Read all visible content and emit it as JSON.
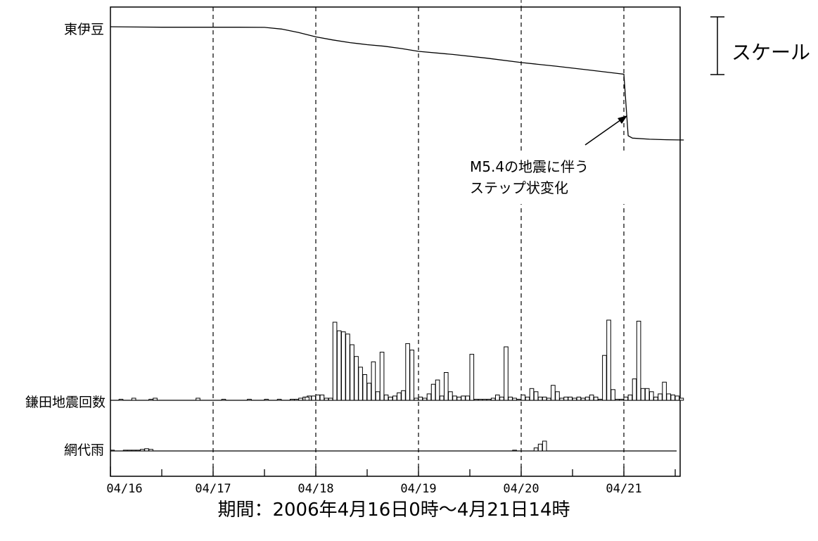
{
  "chart_data": {
    "type": "line",
    "x_start": "2006-04-16 00:00",
    "x_end": "2006-04-21 14:00",
    "x_tick_labels": [
      "04/16",
      "04/17",
      "04/18",
      "04/19",
      "04/20",
      "04/21"
    ],
    "dashed_day_lines": [
      "04/17",
      "04/18",
      "04/19",
      "04/20",
      "04/21"
    ],
    "period_label": "期間：2006年4月16日0時～4月21日14時",
    "panels": [
      {
        "name": "東伊豆",
        "type": "line",
        "points": [
          [
            0,
            10.0
          ],
          [
            6,
            9.98
          ],
          [
            12,
            9.97
          ],
          [
            18,
            9.97
          ],
          [
            24,
            9.97
          ],
          [
            30,
            9.97
          ],
          [
            36,
            9.96
          ],
          [
            40,
            9.85
          ],
          [
            44,
            9.63
          ],
          [
            48,
            9.35
          ],
          [
            52,
            9.15
          ],
          [
            56,
            8.98
          ],
          [
            60,
            8.85
          ],
          [
            64,
            8.75
          ],
          [
            68,
            8.6
          ],
          [
            72,
            8.42
          ],
          [
            80,
            8.22
          ],
          [
            88,
            7.98
          ],
          [
            96,
            7.7
          ],
          [
            104,
            7.47
          ],
          [
            112,
            7.22
          ],
          [
            118,
            7.02
          ],
          [
            120,
            6.95
          ],
          [
            121,
            3.0
          ],
          [
            122,
            2.85
          ],
          [
            126,
            2.78
          ],
          [
            130,
            2.75
          ],
          [
            134,
            2.73
          ]
        ],
        "scale_label": "スケール"
      },
      {
        "name": "鎌田地震回数",
        "type": "bar",
        "hourly_bar_width_hours": 1,
        "bars": [
          [
            2,
            1
          ],
          [
            5,
            2
          ],
          [
            9,
            1
          ],
          [
            10,
            2
          ],
          [
            20,
            2
          ],
          [
            26,
            1
          ],
          [
            32,
            1
          ],
          [
            36,
            1
          ],
          [
            39,
            1
          ],
          [
            42,
            1
          ],
          [
            46,
            4
          ],
          [
            47,
            4
          ],
          [
            48,
            5
          ],
          [
            49,
            5
          ],
          [
            45,
            3
          ],
          [
            50,
            2
          ],
          [
            51,
            2
          ],
          [
            44,
            2
          ],
          [
            43,
            1
          ],
          [
            45.5,
            3
          ],
          [
            52,
            73
          ],
          [
            53,
            65
          ],
          [
            54,
            64
          ],
          [
            55,
            62
          ],
          [
            56,
            52
          ],
          [
            57,
            41
          ],
          [
            58,
            31
          ],
          [
            59,
            24
          ],
          [
            60,
            16
          ],
          [
            61,
            36
          ],
          [
            62,
            8
          ],
          [
            63,
            45
          ],
          [
            64,
            5
          ],
          [
            65,
            3
          ],
          [
            66,
            4
          ],
          [
            67,
            7
          ],
          [
            68,
            9
          ],
          [
            69,
            53
          ],
          [
            70,
            47
          ],
          [
            71,
            2
          ],
          [
            72,
            3
          ],
          [
            73,
            2
          ],
          [
            74,
            6
          ],
          [
            75,
            15
          ],
          [
            76,
            19
          ],
          [
            77,
            4
          ],
          [
            78,
            26
          ],
          [
            79,
            8
          ],
          [
            80,
            4
          ],
          [
            81,
            3
          ],
          [
            82,
            4
          ],
          [
            83,
            4
          ],
          [
            84,
            43
          ],
          [
            85,
            1
          ],
          [
            86,
            1
          ],
          [
            87,
            1
          ],
          [
            88,
            1
          ],
          [
            89,
            2
          ],
          [
            90,
            5
          ],
          [
            91,
            3
          ],
          [
            92,
            50
          ],
          [
            93,
            3
          ],
          [
            94,
            2
          ],
          [
            95,
            1
          ],
          [
            96,
            5
          ],
          [
            97,
            3
          ],
          [
            98,
            11
          ],
          [
            99,
            8
          ],
          [
            100,
            3
          ],
          [
            101,
            3
          ],
          [
            102,
            2
          ],
          [
            103,
            14
          ],
          [
            104,
            8
          ],
          [
            105,
            2
          ],
          [
            106,
            3
          ],
          [
            107,
            3
          ],
          [
            108,
            2
          ],
          [
            109,
            3
          ],
          [
            110,
            2
          ],
          [
            111,
            3
          ],
          [
            112,
            5
          ],
          [
            113,
            3
          ],
          [
            114,
            1
          ],
          [
            115,
            42
          ],
          [
            116,
            75
          ],
          [
            117,
            10
          ],
          [
            118,
            1
          ],
          [
            119,
            1
          ],
          [
            120,
            3
          ],
          [
            121,
            5
          ],
          [
            122,
            20
          ],
          [
            123,
            74
          ],
          [
            124,
            11
          ],
          [
            125,
            11
          ],
          [
            126,
            8
          ],
          [
            127,
            3
          ],
          [
            128,
            6
          ],
          [
            129,
            17
          ],
          [
            130,
            6
          ],
          [
            131,
            5
          ],
          [
            132,
            4
          ],
          [
            133,
            2
          ]
        ]
      },
      {
        "name": "網代雨",
        "type": "bar",
        "hourly_bar_width_hours": 1,
        "bars": [
          [
            0,
            1
          ],
          [
            3,
            1
          ],
          [
            4,
            1
          ],
          [
            5,
            1
          ],
          [
            6,
            1
          ],
          [
            7,
            2
          ],
          [
            8,
            3
          ],
          [
            9,
            2
          ],
          [
            94,
            1
          ],
          [
            99,
            4
          ],
          [
            100,
            9
          ],
          [
            101,
            13
          ]
        ]
      }
    ],
    "annotation": {
      "text_line1": "M5.4の地震に伴う",
      "text_line2": "ステップ状変化",
      "target_hour": 121
    }
  }
}
